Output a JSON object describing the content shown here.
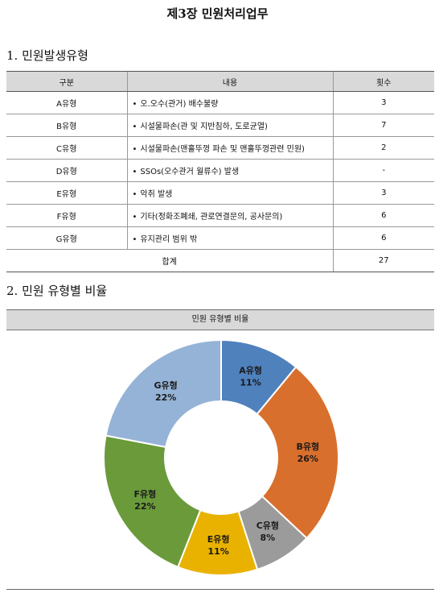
{
  "doc": {
    "title": "제3장 민원처리업무",
    "section1": "1. 민원발생유형",
    "section2": "2. 민원 유형별 비율"
  },
  "table": {
    "headers": [
      "구분",
      "내용",
      "횟수"
    ],
    "rows": [
      {
        "type": "A유형",
        "content": "오.오수(관거) 배수불량",
        "count": "3"
      },
      {
        "type": "B유형",
        "content": "시설물파손(관 및 지반침하, 도로균열)",
        "count": "7"
      },
      {
        "type": "C유형",
        "content": "시설물파손(맨홀뚜껑 파손 및 맨홀뚜껑관련 민원)",
        "count": "2"
      },
      {
        "type": "D유형",
        "content": "SSOs(오수관거 월류수) 발생",
        "count": "-"
      },
      {
        "type": "E유형",
        "content": "악취 발생",
        "count": "3"
      },
      {
        "type": "F유형",
        "content": "기타(정화조폐쇄, 관로연결문의, 공사문의)",
        "count": "6"
      },
      {
        "type": "G유형",
        "content": "유지관리 범위 밖",
        "count": "6"
      }
    ],
    "total_label": "합계",
    "total_value": "27",
    "bullet": "•"
  },
  "chart_data": {
    "type": "pie",
    "title": "민원 유형별 비율",
    "categories": [
      "A유형",
      "B유형",
      "C유형",
      "E유형",
      "F유형",
      "G유형"
    ],
    "values": [
      11,
      26,
      8,
      11,
      22,
      22
    ],
    "labels": [
      "11%",
      "26%",
      "8%",
      "11%",
      "22%",
      "22%"
    ],
    "colors": [
      "#4f81bd",
      "#d96f2c",
      "#9b9b9b",
      "#e9b200",
      "#6a9a3a",
      "#95b3d7"
    ],
    "donut": true,
    "legend": "none"
  }
}
